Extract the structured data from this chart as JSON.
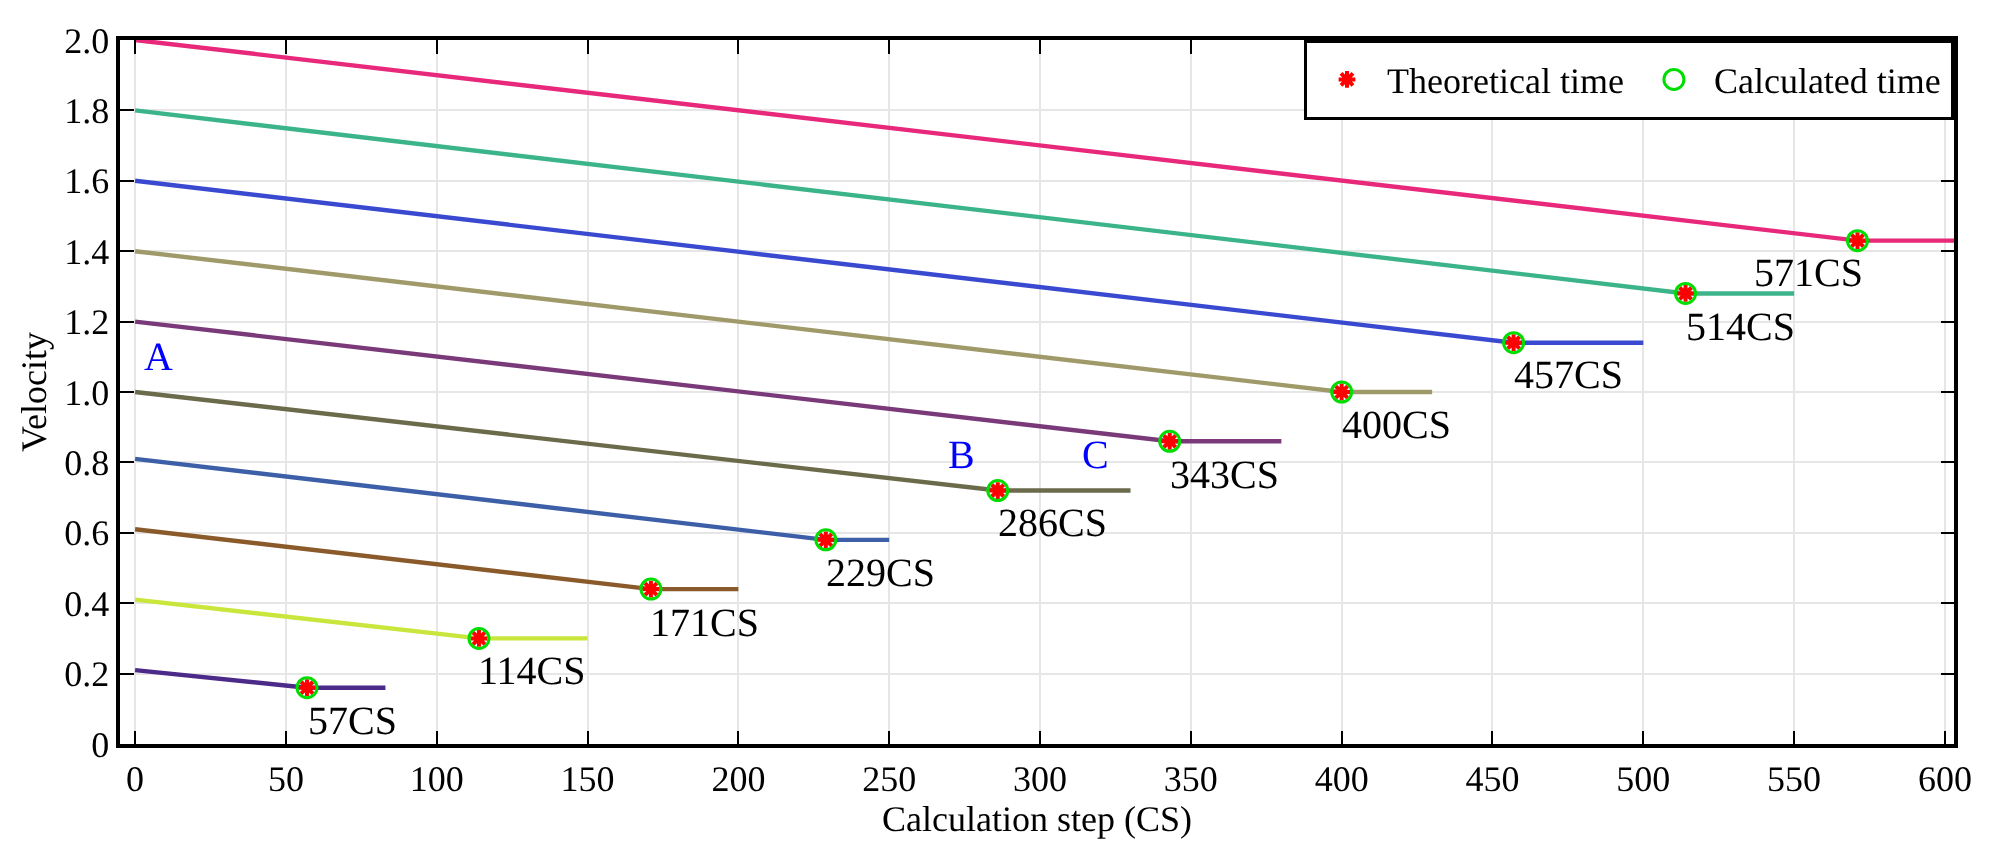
{
  "chart_data": {
    "type": "line",
    "xlabel": "Calculation step (CS)",
    "ylabel": "Velocity",
    "xlim": [
      -5,
      603
    ],
    "ylim": [
      0,
      2
    ],
    "xticks": [
      0,
      50,
      100,
      150,
      200,
      250,
      300,
      350,
      400,
      450,
      500,
      550,
      600
    ],
    "yticks": [
      {
        "value": 0,
        "label": "0"
      },
      {
        "value": 0.2,
        "label": "0.2"
      },
      {
        "value": 0.4,
        "label": "0.4"
      },
      {
        "value": 0.6,
        "label": "0.6"
      },
      {
        "value": 0.8,
        "label": "0.8"
      },
      {
        "value": 1.0,
        "label": "1.0"
      },
      {
        "value": 1.2,
        "label": "1.2"
      },
      {
        "value": 1.4,
        "label": "1.4"
      },
      {
        "value": 1.6,
        "label": "1.6"
      },
      {
        "value": 1.8,
        "label": "1.8"
      },
      {
        "value": 2.0,
        "label": "2.0"
      }
    ],
    "grid": true,
    "legend": "top right",
    "line_style": "solid",
    "series": [
      {
        "color": "#4b2a8a",
        "x": [
          0,
          57,
          83
        ],
        "values": [
          0.21,
          0.16,
          0.16
        ]
      },
      {
        "color": "#c8e63c",
        "x": [
          0,
          114,
          150
        ],
        "values": [
          0.41,
          0.3,
          0.3
        ]
      },
      {
        "color": "#8b5a2b",
        "x": [
          0,
          171,
          200
        ],
        "values": [
          0.61,
          0.44,
          0.44
        ]
      },
      {
        "color": "#3d5fa8",
        "x": [
          0,
          229,
          250
        ],
        "values": [
          0.81,
          0.58,
          0.58
        ]
      },
      {
        "color": "#6b6a4a",
        "x": [
          0,
          286,
          330
        ],
        "values": [
          1.0,
          0.72,
          0.72
        ]
      },
      {
        "color": "#7a3a7a",
        "x": [
          0,
          343,
          380
        ],
        "values": [
          1.2,
          0.86,
          0.86
        ]
      },
      {
        "color": "#a09a6a",
        "x": [
          0,
          400,
          430
        ],
        "values": [
          1.4,
          1.0,
          1.0
        ]
      },
      {
        "color": "#3a4ad0",
        "x": [
          0,
          457,
          500
        ],
        "values": [
          1.6,
          1.14,
          1.14
        ]
      },
      {
        "color": "#3cb48a",
        "x": [
          0,
          514,
          550
        ],
        "values": [
          1.8,
          1.28,
          1.28
        ]
      },
      {
        "color": "#e8287a",
        "x": [
          0,
          571,
          603
        ],
        "values": [
          2.0,
          1.43,
          1.43
        ]
      },
      {
        "type": "scatter",
        "name": "Theoretical time",
        "color": "#ff0000",
        "marker": "cross",
        "x": [
          57,
          114,
          171,
          229,
          286,
          343,
          400,
          457,
          514,
          571
        ],
        "values": [
          0.16,
          0.3,
          0.44,
          0.58,
          0.72,
          0.86,
          1.0,
          1.14,
          1.28,
          1.43
        ]
      },
      {
        "type": "scatter",
        "name": "Calculated time",
        "color": "#00dd00",
        "marker": "circle",
        "x": [
          57,
          114,
          171,
          229,
          286,
          343,
          400,
          457,
          514,
          571
        ],
        "values": [
          0.16,
          0.3,
          0.44,
          0.58,
          0.72,
          0.86,
          1.0,
          1.14,
          1.28,
          1.43
        ]
      }
    ],
    "annotations": [
      {
        "text": "57CS",
        "x": 57,
        "y": 0.16
      },
      {
        "text": "114CS",
        "x": 114,
        "y": 0.3
      },
      {
        "text": "171CS",
        "x": 171,
        "y": 0.44
      },
      {
        "text": "229CS",
        "x": 229,
        "y": 0.58
      },
      {
        "text": "286CS",
        "x": 286,
        "y": 0.72
      },
      {
        "text": "343CS",
        "x": 343,
        "y": 0.86
      },
      {
        "text": "400CS",
        "x": 400,
        "y": 1.0
      },
      {
        "text": "457CS",
        "x": 457,
        "y": 1.14
      },
      {
        "text": "514CS",
        "x": 514,
        "y": 1.28
      },
      {
        "text": "571CS",
        "x": 571,
        "y": 1.43
      },
      {
        "text": "A",
        "x": 0,
        "y": 1.0
      },
      {
        "text": "B",
        "x": 286,
        "y": 0.72
      },
      {
        "text": "C",
        "x": 330,
        "y": 0.72
      }
    ]
  }
}
